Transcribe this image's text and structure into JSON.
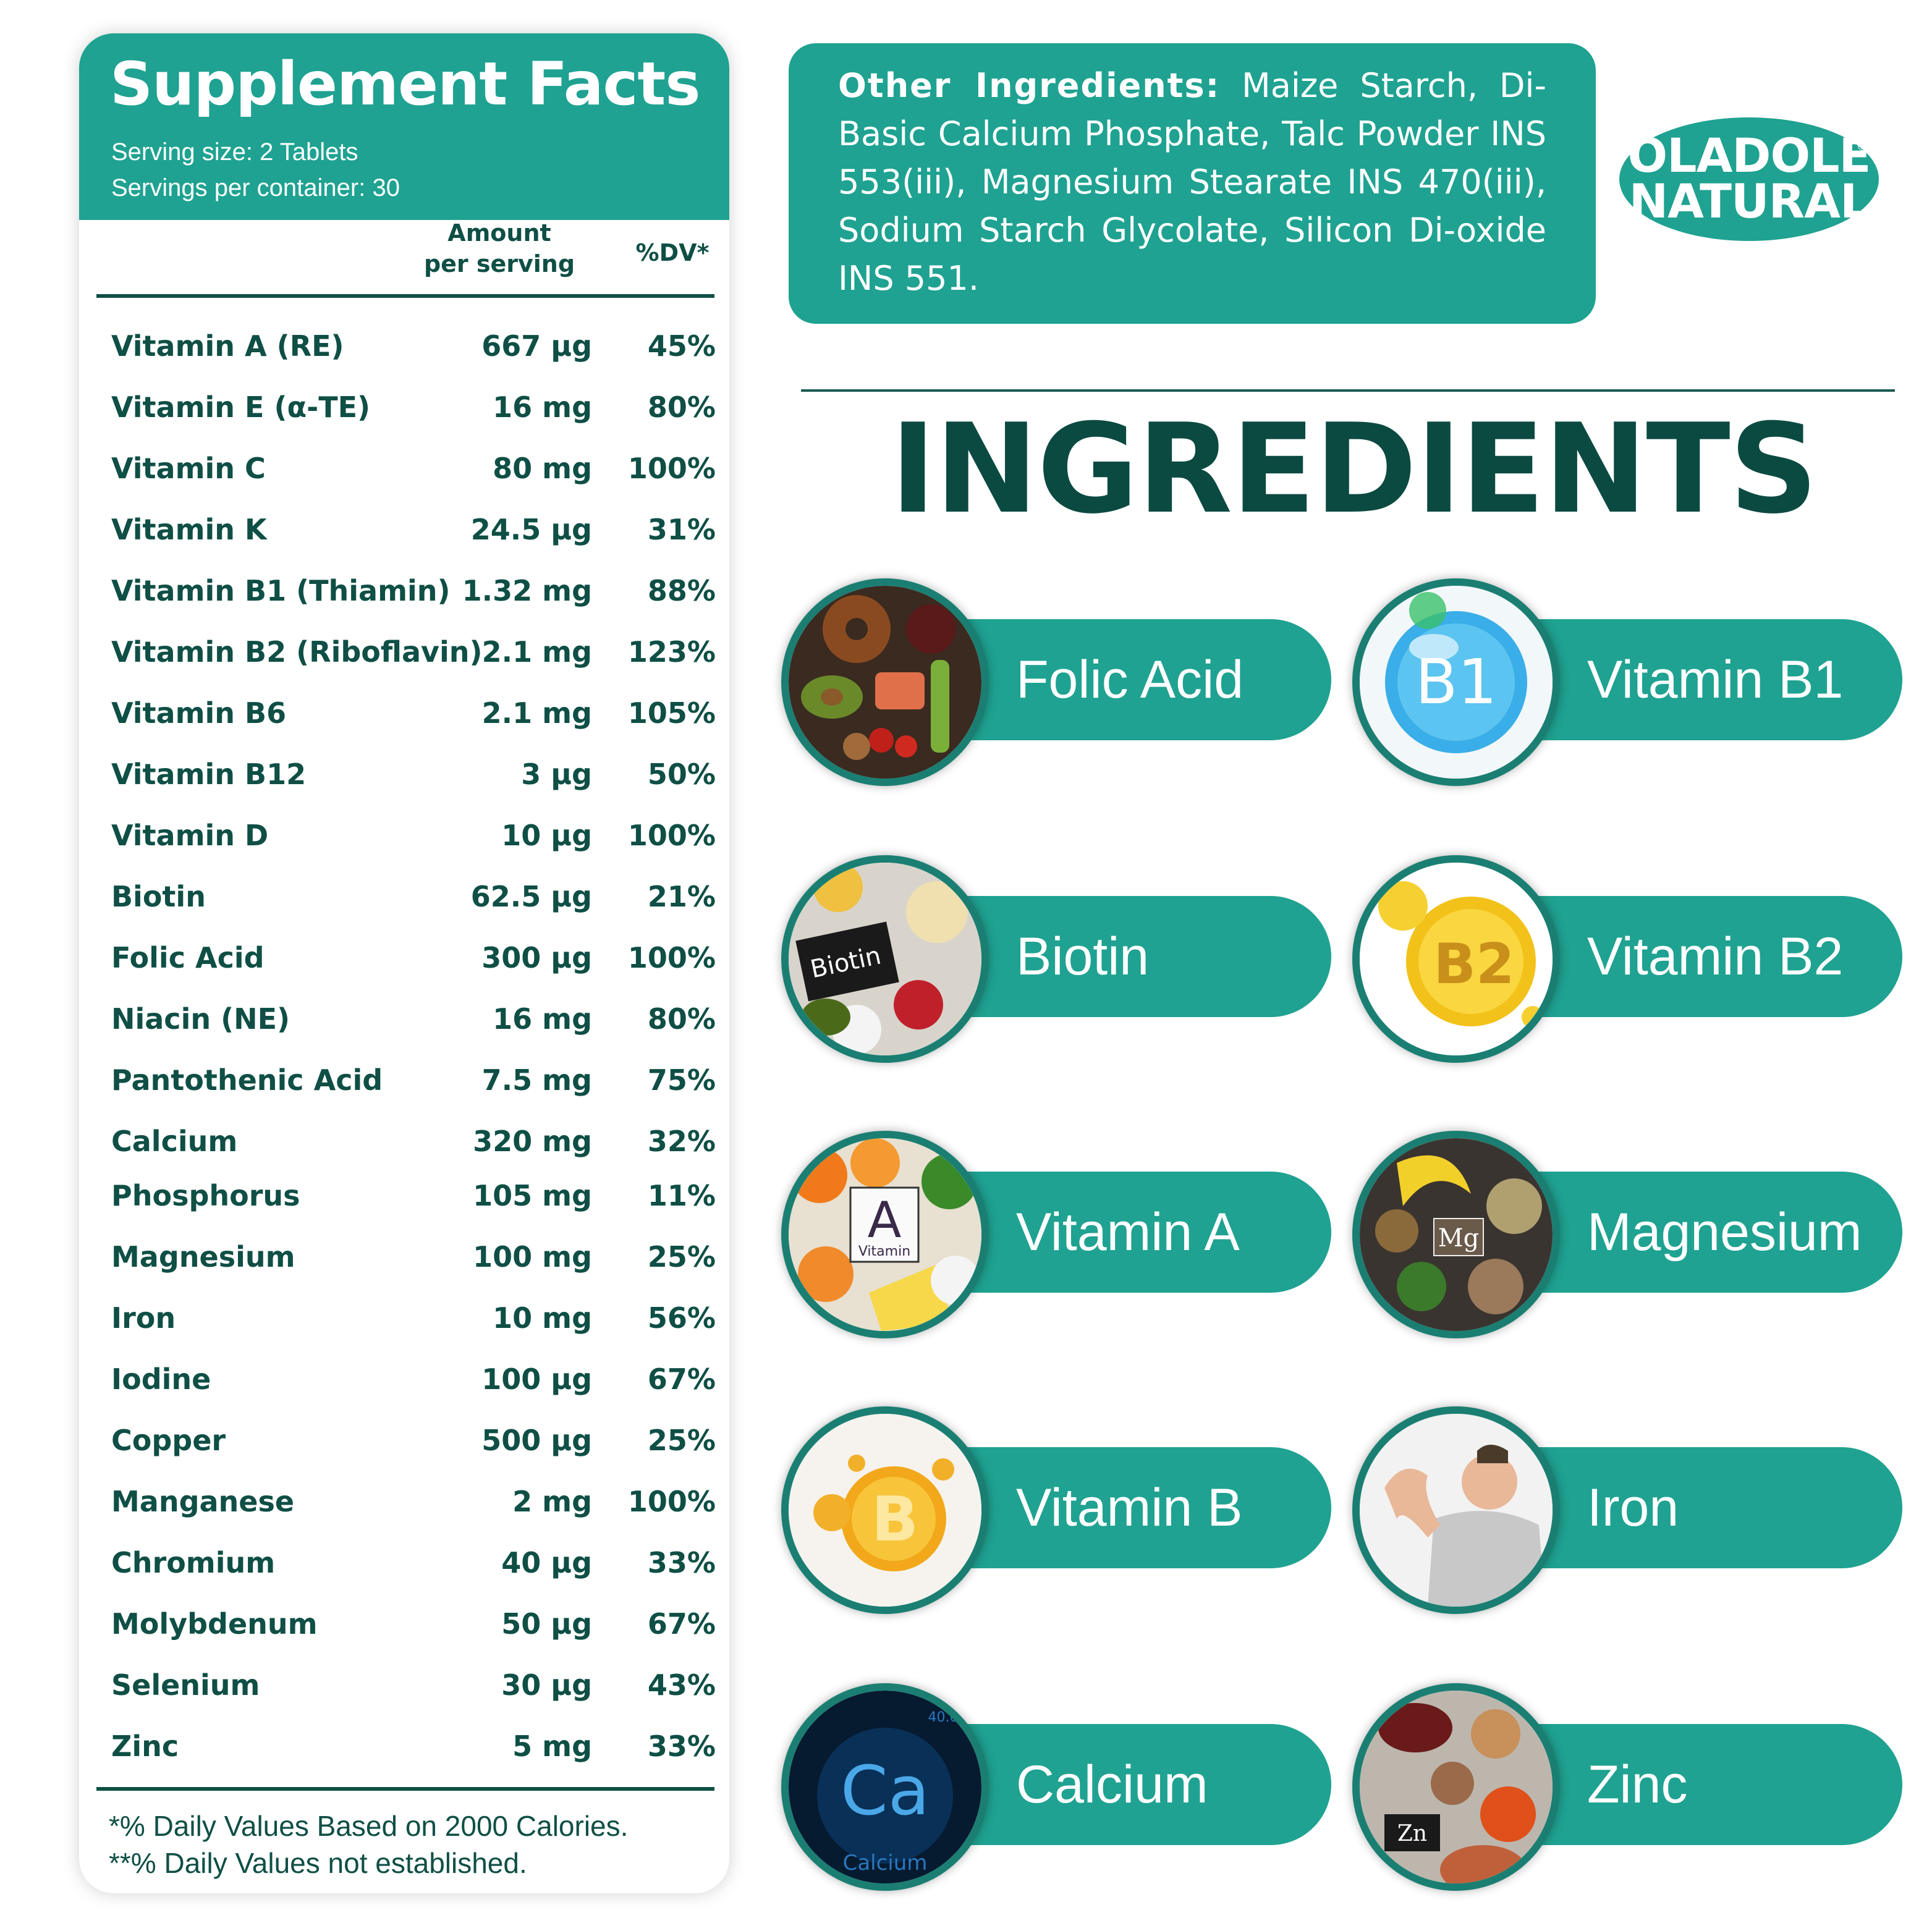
{
  "supplement_facts": {
    "title": "Supplement Facts",
    "serving_size": "Serving size: 2 Tablets",
    "servings_per_container": "Servings per container: 30",
    "col_amount_line1": "Amount",
    "col_amount_line2": "per serving",
    "col_dv": "%DV*",
    "rows": [
      {
        "name": "Vitamin A (RE)",
        "amount": "667 µg",
        "dv": "45%"
      },
      {
        "name": "Vitamin E (α-TE)",
        "amount": "16 mg",
        "dv": "80%"
      },
      {
        "name": "Vitamin C",
        "amount": "80 mg",
        "dv": "100%"
      },
      {
        "name": "Vitamin K",
        "amount": "24.5 µg",
        "dv": "31%"
      },
      {
        "name": "Vitamin B1 (Thiamin)",
        "amount": "1.32 mg",
        "dv": "88%"
      },
      {
        "name": "Vitamin B2 (Riboflavin)",
        "amount": "2.1 mg",
        "dv": "123%"
      },
      {
        "name": "Vitamin B6",
        "amount": "2.1 mg",
        "dv": "105%"
      },
      {
        "name": "Vitamin B12",
        "amount": "3 µg",
        "dv": "50%"
      },
      {
        "name": "Vitamin D",
        "amount": "10 µg",
        "dv": "100%"
      },
      {
        "name": "Biotin",
        "amount": "62.5 µg",
        "dv": "21%"
      },
      {
        "name": "Folic Acid",
        "amount": "300 µg",
        "dv": "100%"
      },
      {
        "name": "Niacin (NE)",
        "amount": "16 mg",
        "dv": "80%"
      },
      {
        "name": "Pantothenic Acid",
        "amount": "7.5 mg",
        "dv": "75%"
      },
      {
        "name": "Calcium",
        "amount": "320 mg",
        "dv": "32%"
      },
      {
        "name": "Phosphorus",
        "amount": "105 mg",
        "dv": "11%"
      },
      {
        "name": "Magnesium",
        "amount": "100 mg",
        "dv": "25%"
      },
      {
        "name": "Iron",
        "amount": "10 mg",
        "dv": "56%"
      },
      {
        "name": "Iodine",
        "amount": "100 µg",
        "dv": "67%"
      },
      {
        "name": "Copper",
        "amount": "500 µg",
        "dv": "25%"
      },
      {
        "name": "Manganese",
        "amount": "2 mg",
        "dv": "100%"
      },
      {
        "name": "Chromium",
        "amount": "40 µg",
        "dv": "33%"
      },
      {
        "name": "Molybdenum",
        "amount": "50 µg",
        "dv": "67%"
      },
      {
        "name": "Selenium",
        "amount": "30 µg",
        "dv": "43%"
      },
      {
        "name": "Zinc",
        "amount": "5 mg",
        "dv": "33%"
      }
    ],
    "footnote1": "*% Daily  Values Based on 2000 Calories.",
    "footnote2": "**% Daily   Values not established."
  },
  "other_ingredients": {
    "label": "Other Ingredients:",
    "text": " Maize Starch, Di-Basic Calcium Phosphate, Talc Powder INS 553(iii), Magnesium Stearate INS 470(iii), Sodium Starch Glycolate, Silicon Di-oxide INS 551."
  },
  "logo": {
    "line1": "OLADOLE",
    "line2": "NATURAL",
    "mark": "®"
  },
  "ingredients_title": "INGREDIENTS",
  "ingredients": [
    {
      "label": "Folic Acid",
      "icon": "assorted-foods-image"
    },
    {
      "label": "Vitamin B1",
      "icon": "b1-vitamin-bubble-image",
      "icon_text": "B1"
    },
    {
      "label": "Biotin",
      "icon": "biotin-foods-image",
      "icon_text": "Biotin"
    },
    {
      "label": "Vitamin B2",
      "icon": "b2-vitamin-bubble-image",
      "icon_text": "B2"
    },
    {
      "label": "Vitamin A",
      "icon": "vitamin-a-foods-image",
      "icon_text": "A",
      "icon_subtext": "Vitamin"
    },
    {
      "label": "Magnesium",
      "icon": "magnesium-foods-image",
      "icon_text": "Mg"
    },
    {
      "label": "Vitamin B",
      "icon": "vitamin-b-bubble-image",
      "icon_text": "B"
    },
    {
      "label": "Iron",
      "icon": "flexing-man-image"
    },
    {
      "label": "Calcium",
      "icon": "calcium-element-image",
      "icon_text": "Ca",
      "icon_subtext": "Calcium",
      "icon_number": "40.0"
    },
    {
      "label": "Zinc",
      "icon": "zinc-foods-image",
      "icon_text": "Zn"
    }
  ],
  "colors": {
    "teal": "#1fa291",
    "dark_green": "#0f4f45",
    "circle_border": "#1a7f72"
  }
}
